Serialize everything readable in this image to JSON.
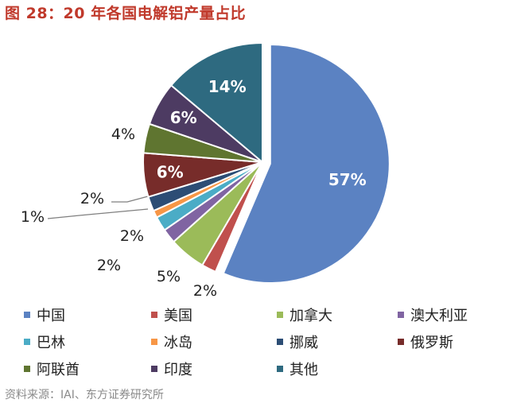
{
  "figure_title": "图 28：20 年各国电解铝产量占比",
  "source": "资料来源：IAI、东方证券研究所",
  "chart_data": {
    "type": "pie",
    "title": "",
    "legend_position": "bottom",
    "categories": [
      "中国",
      "美国",
      "加拿大",
      "澳大利亚",
      "巴林",
      "冰岛",
      "挪威",
      "俄罗斯",
      "阿联酋",
      "印度",
      "其他"
    ],
    "values": [
      57,
      2,
      5,
      2,
      2,
      1,
      2,
      6,
      4,
      6,
      14
    ],
    "labels": [
      "57%",
      "2%",
      "5%",
      "2%",
      "2%",
      "1%",
      "2%",
      "6%",
      "4%",
      "6%",
      "14%"
    ],
    "colors": [
      "#5b82c2",
      "#c0504d",
      "#9bbb59",
      "#8064a2",
      "#4bacc6",
      "#f79646",
      "#2c4d75",
      "#772c2a",
      "#5f7530",
      "#4d3b62",
      "#2e6a80"
    ],
    "explode_first": true
  }
}
